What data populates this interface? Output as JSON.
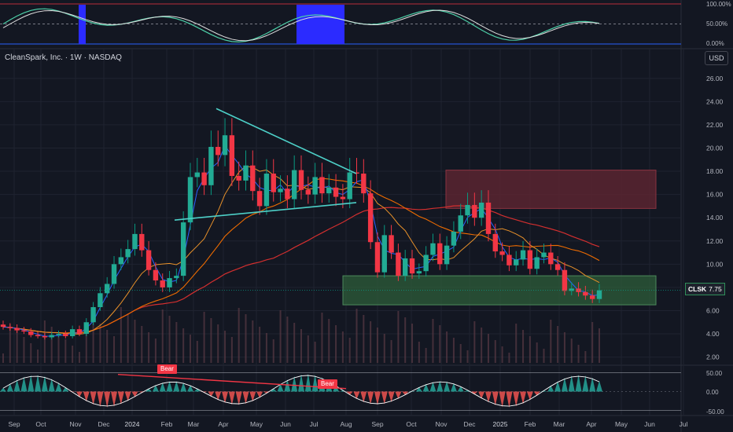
{
  "header": {
    "title": "CleanSpark, Inc. · 1W · NASDAQ",
    "currency": "USD"
  },
  "price_tag": {
    "symbol": "CLSK",
    "value": "7.75"
  },
  "labels": {
    "bear_1": "Bear",
    "bear_2": "Bear"
  },
  "colors": {
    "bg": "#131722",
    "up": "#089981",
    "down": "#f23645",
    "grid": "#1f2330",
    "ma_fast": "#2962ff",
    "ma_mid": "#f7931a",
    "ma_slow": "#ff5252",
    "trend": "#4dd0c8",
    "zone_green": "#2e5d3a",
    "zone_red": "#5a2430"
  },
  "chart_data": {
    "type": "candlestick",
    "title": "CleanSpark, Inc. · 1W · NASDAQ",
    "x_ticks": [
      "Sep",
      "Oct",
      "Nov",
      "Dec",
      "2024",
      "Feb",
      "Mar",
      "Apr",
      "May",
      "Jun",
      "Jul",
      "Aug",
      "Sep",
      "Oct",
      "Nov",
      "Dec",
      "2025",
      "Feb",
      "Mar",
      "Apr",
      "May",
      "Jun",
      "Jul"
    ],
    "y_ticks": [
      "2.00",
      "4.00",
      "6.00",
      "8.00",
      "10.00",
      "12.00",
      "14.00",
      "16.00",
      "18.00",
      "20.00",
      "22.00",
      "24.00",
      "26.00"
    ],
    "ylim": [
      1.5,
      27
    ],
    "last_price": 7.75,
    "ohlc_close": [
      4.6,
      4.5,
      4.3,
      4.2,
      3.9,
      3.8,
      3.7,
      3.9,
      4.0,
      3.8,
      4.4,
      4.0,
      5.0,
      6.3,
      7.5,
      8.3,
      10.0,
      10.6,
      11.3,
      12.6,
      11.2,
      9.5,
      8.6,
      8.0,
      8.8,
      9.0,
      13.6,
      17.5,
      17.9,
      16.8,
      20.1,
      19.4,
      21.1,
      17.6,
      17.2,
      18.5,
      16.3,
      15.0,
      17.8,
      16.2,
      16.5,
      15.6,
      18.1,
      16.4,
      16.0,
      17.5,
      16.1,
      16.6,
      15.8,
      15.6,
      17.9,
      17.8,
      16.1,
      11.9,
      9.3,
      12.5,
      11.0,
      9.0,
      10.5,
      9.2,
      9.4,
      10.8,
      11.8,
      10.0,
      11.6,
      12.8,
      14.2,
      15.1,
      14.0,
      15.3,
      12.6,
      11.1,
      10.8,
      9.9,
      10.4,
      11.2,
      9.6,
      10.6,
      11.0,
      10.0,
      9.5,
      7.7,
      7.9,
      7.6,
      7.3,
      7.0,
      7.75
    ],
    "indicators": {
      "top_panel_ticks": [
        "100.00%",
        "50.00%",
        "0.00%"
      ],
      "bottom_panel_ticks": [
        "50.00",
        "0.00",
        "-50.00"
      ]
    }
  }
}
